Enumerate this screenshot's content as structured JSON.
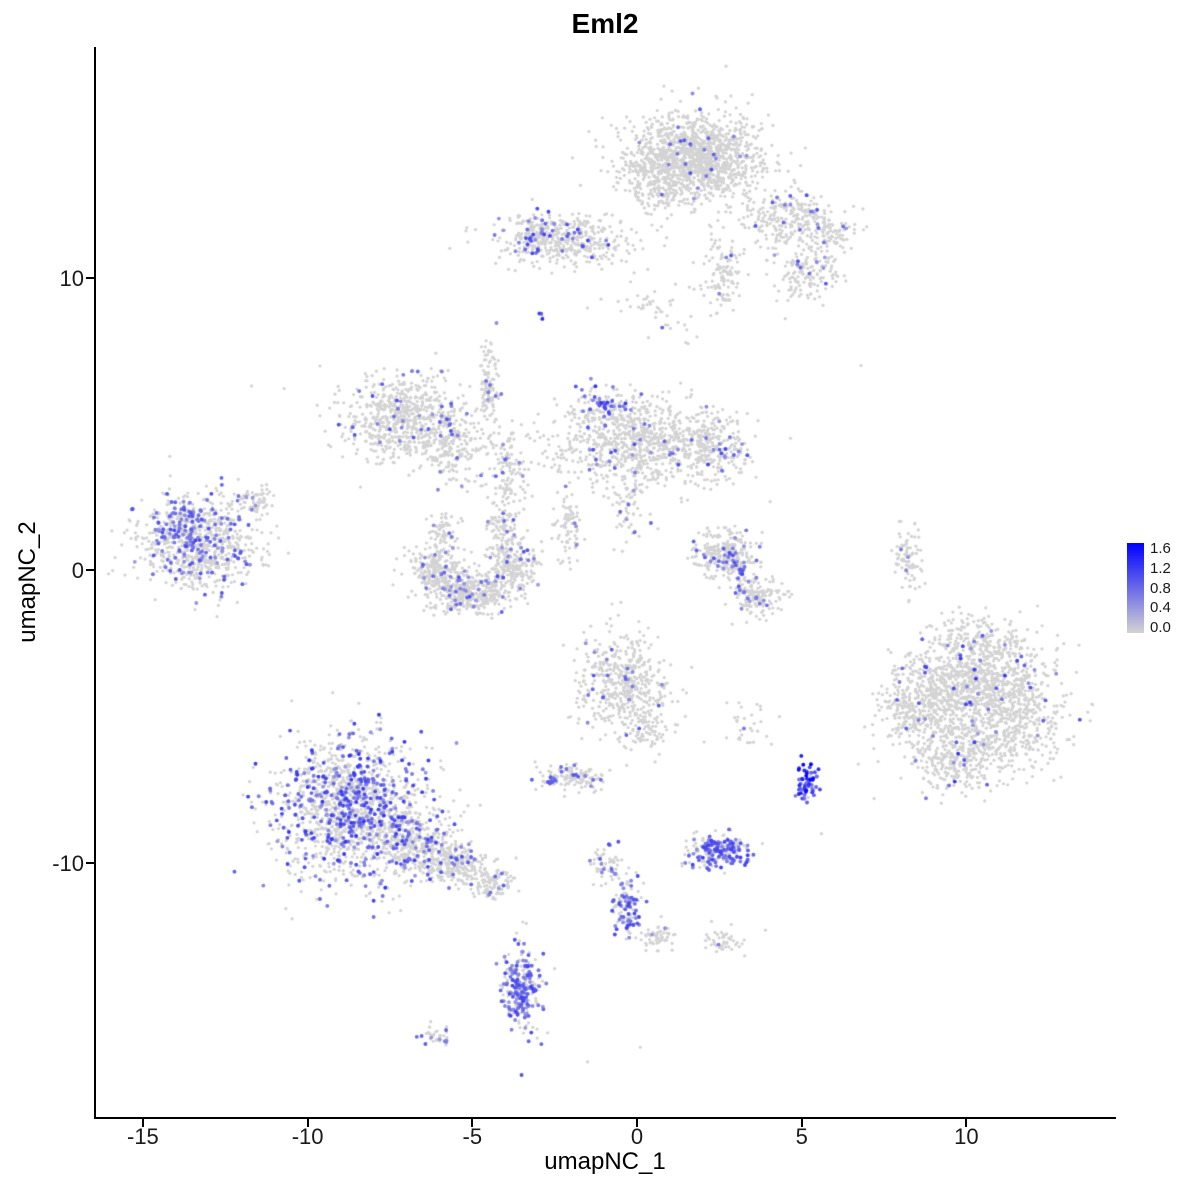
{
  "chart_data": {
    "type": "scatter",
    "title": "Eml2",
    "xlabel": "umapNC_1",
    "ylabel": "umapNC_2",
    "xlim": [
      -16.5,
      14.5
    ],
    "ylim": [
      -18.7,
      17.9
    ],
    "grid": false,
    "x_ticks": [
      -15,
      -10,
      -5,
      0,
      5,
      10
    ],
    "y_ticks": [
      -10,
      0,
      10
    ],
    "color_scale": {
      "low": "#D3D3D3",
      "high": "#0000FF",
      "vmin": 0.0,
      "vmax": 1.6
    },
    "legend": {
      "labels": [
        "1.6",
        "1.2",
        "0.8",
        "0.4",
        "0.0"
      ],
      "position": "right"
    },
    "cluster_columns": [
      "cx",
      "cy",
      "sx",
      "sy",
      "n",
      "expr_frac",
      "expr_min",
      "expr_max"
    ],
    "clusters": [
      [
        1.8,
        14.1,
        1.0,
        0.75,
        1400,
        0.015,
        0.4,
        1.0
      ],
      [
        0.4,
        13.4,
        0.4,
        0.5,
        120,
        0.02,
        0.4,
        0.9
      ],
      [
        4.6,
        12.0,
        0.75,
        0.5,
        280,
        0.04,
        0.4,
        1.0
      ],
      [
        5.2,
        10.1,
        0.5,
        0.45,
        140,
        0.05,
        0.4,
        1.0
      ],
      [
        6.0,
        11.4,
        0.3,
        0.3,
        60,
        0.03,
        0.4,
        0.9
      ],
      [
        -2.2,
        11.3,
        1.0,
        0.45,
        420,
        0.07,
        0.4,
        1.1
      ],
      [
        -3.2,
        11.5,
        0.25,
        0.3,
        70,
        0.25,
        0.5,
        1.1
      ],
      [
        2.6,
        10.2,
        0.3,
        0.7,
        110,
        0.03,
        0.4,
        0.9
      ],
      [
        0.7,
        9.0,
        0.8,
        0.6,
        50,
        0.02,
        0.4,
        0.9
      ],
      [
        -2.9,
        8.6,
        0.08,
        0.08,
        4,
        0.8,
        0.8,
        1.3
      ],
      [
        -7.1,
        5.2,
        0.95,
        0.7,
        650,
        0.04,
        0.4,
        1.0
      ],
      [
        -5.7,
        4.2,
        0.5,
        0.6,
        200,
        0.05,
        0.4,
        1.0
      ],
      [
        -4.5,
        6.2,
        0.15,
        0.85,
        110,
        0.05,
        0.4,
        1.0
      ],
      [
        -3.9,
        3.3,
        0.3,
        0.8,
        130,
        0.04,
        0.4,
        0.9
      ],
      [
        0.0,
        4.4,
        1.3,
        0.75,
        850,
        0.04,
        0.4,
        1.0
      ],
      [
        -1.0,
        5.7,
        0.45,
        0.3,
        90,
        0.45,
        0.5,
        1.2
      ],
      [
        2.3,
        4.2,
        0.55,
        0.5,
        220,
        0.08,
        0.4,
        1.1
      ],
      [
        -0.2,
        2.2,
        0.3,
        0.6,
        70,
        0.05,
        0.4,
        0.9
      ],
      [
        -13.3,
        0.9,
        0.95,
        0.8,
        700,
        0.18,
        0.4,
        1.0
      ],
      [
        -13.6,
        1.6,
        0.5,
        0.4,
        130,
        0.5,
        0.5,
        1.1
      ],
      [
        -11.6,
        2.4,
        0.3,
        0.25,
        60,
        0.05,
        0.4,
        0.9
      ],
      [
        -6.1,
        -0.1,
        0.45,
        0.5,
        260,
        0.06,
        0.4,
        0.9
      ],
      [
        -5.0,
        -0.75,
        0.55,
        0.35,
        330,
        0.1,
        0.4,
        1.0
      ],
      [
        -3.8,
        0.1,
        0.4,
        0.5,
        240,
        0.08,
        0.4,
        1.0
      ],
      [
        -5.9,
        1.3,
        0.2,
        0.3,
        60,
        0.05,
        0.4,
        0.9
      ],
      [
        -4.1,
        1.5,
        0.25,
        0.35,
        70,
        0.05,
        0.4,
        0.9
      ],
      [
        -2.1,
        1.5,
        0.2,
        0.6,
        80,
        0.06,
        0.4,
        0.9
      ],
      [
        2.6,
        0.6,
        0.5,
        0.4,
        260,
        0.1,
        0.4,
        1.0
      ],
      [
        3.1,
        -0.2,
        0.15,
        0.4,
        45,
        0.6,
        0.5,
        1.1
      ],
      [
        3.7,
        -0.9,
        0.4,
        0.35,
        150,
        0.05,
        0.4,
        0.9
      ],
      [
        8.2,
        0.4,
        0.2,
        0.5,
        90,
        0.03,
        0.4,
        0.8
      ],
      [
        -0.4,
        -3.9,
        0.7,
        0.85,
        520,
        0.03,
        0.4,
        1.0
      ],
      [
        0.3,
        -5.6,
        0.3,
        0.4,
        60,
        0.03,
        0.4,
        0.9
      ],
      [
        -2.0,
        -7.1,
        0.45,
        0.22,
        130,
        0.15,
        0.4,
        1.0
      ],
      [
        -2.6,
        -7.2,
        0.1,
        0.1,
        6,
        0.9,
        0.7,
        1.1
      ],
      [
        9.4,
        -4.2,
        0.9,
        0.9,
        550,
        0.035,
        0.4,
        1.2
      ],
      [
        10.9,
        -3.7,
        0.9,
        0.8,
        520,
        0.035,
        0.4,
        1.2
      ],
      [
        11.7,
        -5.2,
        0.7,
        0.7,
        300,
        0.03,
        0.4,
        1.0
      ],
      [
        9.9,
        -6.4,
        0.8,
        0.6,
        380,
        0.035,
        0.4,
        1.2
      ],
      [
        8.3,
        -4.8,
        0.5,
        0.6,
        180,
        0.03,
        0.4,
        1.0
      ],
      [
        10.4,
        -2.3,
        0.7,
        0.4,
        140,
        0.03,
        0.4,
        1.0
      ],
      [
        5.15,
        -7.3,
        0.18,
        0.35,
        55,
        0.9,
        0.6,
        1.6
      ],
      [
        -8.6,
        -8.2,
        1.15,
        1.2,
        1500,
        0.28,
        0.4,
        1.2
      ],
      [
        -6.6,
        -9.4,
        0.6,
        0.5,
        300,
        0.15,
        0.4,
        1.1
      ],
      [
        -5.5,
        -10.1,
        0.5,
        0.35,
        220,
        0.1,
        0.4,
        1.0
      ],
      [
        -4.4,
        -10.7,
        0.35,
        0.25,
        100,
        0.04,
        0.4,
        0.9
      ],
      [
        2.4,
        -9.6,
        0.5,
        0.3,
        210,
        0.5,
        0.5,
        1.1
      ],
      [
        -0.9,
        -10.1,
        0.25,
        0.3,
        60,
        0.25,
        0.5,
        1.0
      ],
      [
        -0.3,
        -11.5,
        0.22,
        0.55,
        110,
        0.5,
        0.5,
        1.1
      ],
      [
        0.5,
        -12.5,
        0.3,
        0.3,
        60,
        0.05,
        0.4,
        0.9
      ],
      [
        2.6,
        -12.7,
        0.3,
        0.2,
        45,
        0.03,
        0.4,
        0.8
      ],
      [
        -3.5,
        -14.3,
        0.28,
        0.75,
        260,
        0.55,
        0.4,
        1.1
      ],
      [
        -6.1,
        -15.9,
        0.22,
        0.18,
        35,
        0.25,
        0.4,
        0.9
      ],
      [
        3.3,
        -5.3,
        0.4,
        0.4,
        30,
        0.03,
        0.4,
        0.8
      ]
    ],
    "stray_points": [
      [
        6.8,
        7.0
      ],
      [
        -11.7,
        6.3
      ],
      [
        4.5,
        8.6
      ],
      [
        0.1,
        -16.3
      ],
      [
        3.9,
        -12.3
      ],
      [
        -1.5,
        -16.8
      ],
      [
        7.2,
        -7.8
      ],
      [
        5.6,
        -9.0
      ]
    ]
  }
}
